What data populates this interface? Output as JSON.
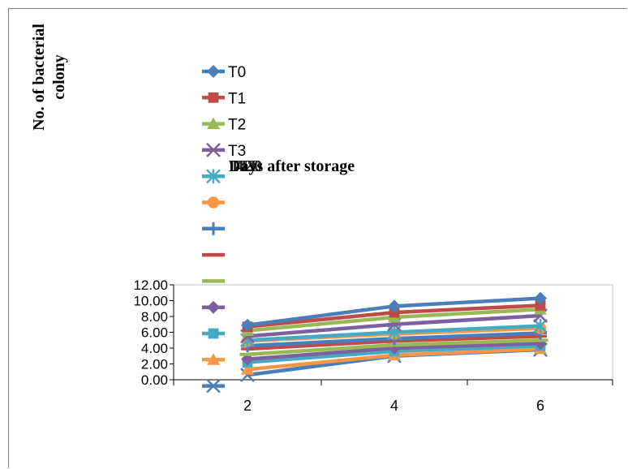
{
  "chart_data": {
    "type": "line",
    "xlabel": "Days after storage",
    "ylabel": "No. of bacterial colony",
    "x": [
      2,
      4,
      6
    ],
    "ylim": [
      0,
      12
    ],
    "yticks": [
      "0.00",
      "2.00",
      "4.00",
      "6.00",
      "8.00",
      "10.00",
      "12.00"
    ],
    "xticks": [
      "2",
      "4",
      "6"
    ],
    "grid": false,
    "legend_position": "left, overlapping plot",
    "series": [
      {
        "name": "T0",
        "color": "#4a7ebb",
        "marker": "diamond",
        "values": [
          6.9,
          9.3,
          10.3
        ]
      },
      {
        "name": "T1",
        "color": "#be4b48",
        "marker": "square",
        "values": [
          6.7,
          8.5,
          9.4
        ]
      },
      {
        "name": "T2",
        "color": "#98b954",
        "marker": "triangle",
        "values": [
          6.2,
          7.9,
          8.9
        ]
      },
      {
        "name": "T3",
        "color": "#7d60a0",
        "marker": "x",
        "values": [
          5.5,
          7.0,
          8.1
        ]
      },
      {
        "name": "",
        "color": "#46aac5",
        "marker": "star",
        "values": [
          5.0,
          6.0,
          6.8
        ]
      },
      {
        "name": "",
        "color": "#f79646",
        "marker": "circle",
        "values": [
          4.9,
          5.8,
          6.5
        ]
      },
      {
        "name": "",
        "color": "#4a7ebb",
        "marker": "plus",
        "values": [
          4.3,
          5.2,
          5.9
        ]
      },
      {
        "name": "",
        "color": "#be4b48",
        "marker": "dash",
        "values": [
          3.9,
          4.9,
          5.5
        ]
      },
      {
        "name": "",
        "color": "#98b954",
        "marker": "longdash",
        "values": [
          3.2,
          4.4,
          5.0
        ]
      },
      {
        "name": "",
        "color": "#7d60a0",
        "marker": "diamond",
        "values": [
          2.6,
          4.0,
          4.6
        ]
      },
      {
        "name": "",
        "color": "#46aac5",
        "marker": "square",
        "values": [
          2.2,
          3.6,
          4.3
        ]
      },
      {
        "name": "",
        "color": "#f79646",
        "marker": "triangle",
        "values": [
          1.3,
          3.1,
          3.9
        ]
      },
      {
        "name": "",
        "color": "#4a7ebb",
        "marker": "x",
        "values": [
          0.6,
          3.0,
          3.8
        ]
      }
    ],
    "overlapped_label_fragments": [
      "T4",
      "T2",
      "T0"
    ]
  }
}
